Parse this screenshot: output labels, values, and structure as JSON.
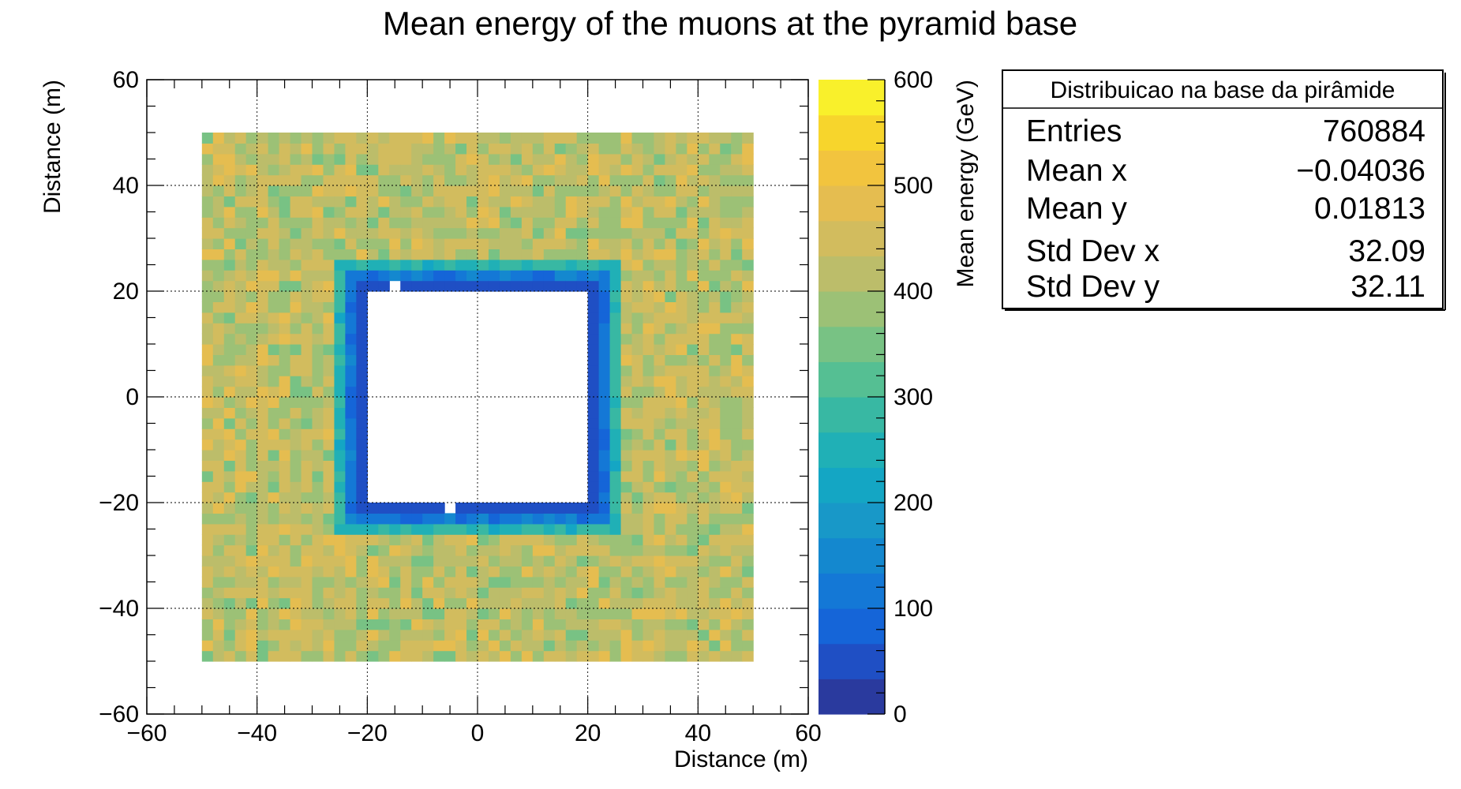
{
  "chart_data": {
    "type": "heatmap",
    "title": "Mean energy of the muons at the pyramid base",
    "xlabel": "Distance (m)",
    "ylabel": "Distance (m)",
    "zlabel": "Mean energy (GeV)",
    "xlim": [
      -60,
      60
    ],
    "ylim": [
      -60,
      60
    ],
    "zlim": [
      0,
      600
    ],
    "grid": true,
    "x_ticks": [
      -60,
      -40,
      -20,
      0,
      20,
      40,
      60
    ],
    "y_ticks": [
      -60,
      -40,
      -20,
      0,
      20,
      40,
      60
    ],
    "x_tick_labels": [
      "−60",
      "−40",
      "−20",
      "0",
      "20",
      "40",
      "60"
    ],
    "y_tick_labels": [
      "−60",
      "−40",
      "−20",
      "0",
      "20",
      "40",
      "60"
    ],
    "z_ticks": [
      0,
      100,
      200,
      300,
      400,
      500,
      600
    ],
    "z_tick_labels": [
      "0",
      "100",
      "200",
      "300",
      "400",
      "500",
      "600"
    ],
    "bin_size_m": 2,
    "regions": [
      {
        "name": "outside",
        "x": [
          -50,
          50
        ],
        "y": [
          -50,
          50
        ],
        "mean_energy": [
          360,
          480
        ]
      },
      {
        "name": "outer ring",
        "x": [
          -26,
          26
        ],
        "y": [
          -26,
          26
        ],
        "mean_energy": [
          230,
          300
        ]
      },
      {
        "name": "middle ring",
        "x": [
          -24,
          24
        ],
        "y": [
          -24,
          24
        ],
        "mean_energy": [
          90,
          140
        ]
      },
      {
        "name": "inner ring",
        "x": [
          -22,
          22
        ],
        "y": [
          -22,
          22
        ],
        "mean_energy": [
          40,
          60
        ]
      },
      {
        "name": "empty interior",
        "x": [
          -20,
          20
        ],
        "y": [
          -20,
          20
        ],
        "mean_energy": null
      }
    ],
    "empty_bins": [
      {
        "x": [
          -16,
          -14
        ],
        "y": [
          20,
          22
        ]
      },
      {
        "x": [
          -6,
          -4
        ],
        "y": [
          -22,
          -20
        ]
      }
    ],
    "palette": [
      "#2a3a9e",
      "#1f4fc4",
      "#1565d8",
      "#1478d6",
      "#1488cf",
      "#1898c8",
      "#14a6c4",
      "#20b0b6",
      "#38b8a3",
      "#55bf93",
      "#78c284",
      "#9cc176",
      "#bcbd6a",
      "#d2bc5e",
      "#e5bd50",
      "#f2c43e",
      "#f7d52c",
      "#f9f02b"
    ]
  },
  "stats_box": {
    "title": "Distribuicao na base da pirâmide",
    "rows": [
      {
        "label": "Entries",
        "value": "760884"
      },
      {
        "label": "Mean x",
        "value": "−0.04036"
      },
      {
        "label": "Mean y",
        "value": "0.01813"
      },
      {
        "label": "Std Dev x",
        "value": "32.09"
      },
      {
        "label": "Std Dev y",
        "value": "32.11"
      }
    ]
  }
}
